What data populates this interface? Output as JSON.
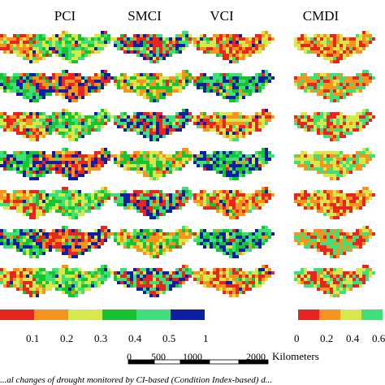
{
  "headers": [
    "PCI",
    "SMCI",
    "VCI",
    "CMDI"
  ],
  "row_count": 7,
  "legend_left": {
    "colors": [
      "#e6261f",
      "#f7941d",
      "#d7e84a",
      "#17c42f",
      "#3fe07a",
      "#0d1fa3"
    ],
    "ticks": [
      "0.1",
      "0.2",
      "0.3",
      "0.4",
      "0.5",
      "1"
    ]
  },
  "legend_right": {
    "colors": [
      "#e6261f",
      "#f7941d",
      "#d7e84a",
      "#3fe07a"
    ],
    "ticks": [
      "0",
      "0.2",
      "0.4",
      "0.6"
    ]
  },
  "scale_bar": {
    "labels": [
      "0",
      "500",
      "1000",
      "2000"
    ],
    "unit": "Kilometers"
  },
  "caption": "...al changes of drought monitored by CI-based (Condition Index-based) d..."
}
